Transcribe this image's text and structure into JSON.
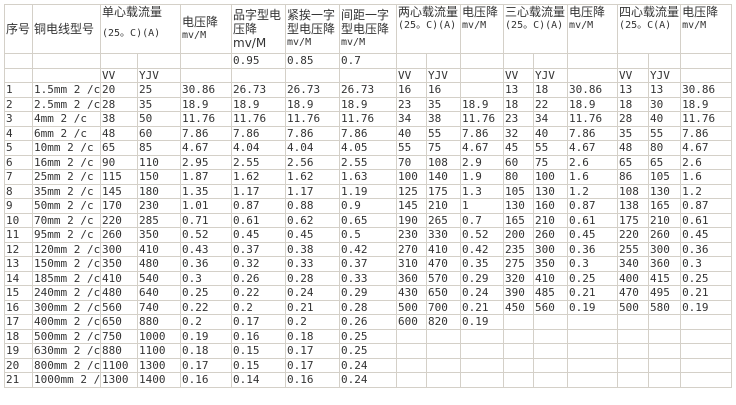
{
  "header": {
    "no": "序号",
    "model": "铜电线型号",
    "single_capacity": "单心载流量",
    "single_capacity_unit": "(25。C)(A)",
    "voltage_drop": "电压降",
    "voltage_drop_unit": "mv/M",
    "trefoil": "品字型电压降mv/M",
    "flat_touching": "紧挨一字型电压降",
    "flat_touching_unit": "mv/M",
    "flat_spaced": "间距一字型电压降",
    "flat_spaced_unit": "mv/M",
    "two_core": "两心载流量",
    "two_core_unit": "(25。C)(A)",
    "two_drop": "电压降",
    "two_drop_unit": "mv/M",
    "three_core": "三心载流量",
    "three_core_unit": "(25。C)(A)",
    "three_drop": "电压降",
    "three_drop_unit": "mv/M",
    "four_core": "四心载流量",
    "four_core_unit": "(25。C(A)",
    "four_drop": "电压降",
    "four_drop_unit": "mv/M"
  },
  "factors": [
    "",
    "",
    "",
    "",
    "",
    "0.95",
    "0.85",
    "0.7",
    "",
    "",
    "",
    "",
    "",
    "",
    "",
    "",
    ""
  ],
  "subheader": [
    "",
    "",
    "VV",
    "YJV",
    "",
    "",
    "",
    "",
    "VV",
    "YJV",
    "",
    "VV",
    "YJV",
    "",
    "VV",
    "YJV",
    ""
  ],
  "rows": [
    [
      "1",
      "1.5mm 2 /c",
      "20",
      "25",
      "30.86",
      "26.73",
      "26.73",
      "26.73",
      "16",
      "16",
      "",
      "13",
      "18",
      "30.86",
      "13",
      "13",
      "30.86"
    ],
    [
      "2",
      "2.5mm 2 /c",
      "28",
      "35",
      "18.9",
      "18.9",
      "18.9",
      "18.9",
      "23",
      "35",
      "18.9",
      "18",
      "22",
      "18.9",
      "18",
      "30",
      "18.9"
    ],
    [
      "3",
      "4mm 2 /c",
      "38",
      "50",
      "11.76",
      "11.76",
      "11.76",
      "11.76",
      "34",
      "38",
      "11.76",
      "23",
      "34",
      "11.76",
      "28",
      "40",
      "11.76"
    ],
    [
      "4",
      "6mm 2 /c",
      "48",
      "60",
      "7.86",
      "7.86",
      "7.86",
      "7.86",
      "40",
      "55",
      "7.86",
      "32",
      "40",
      "7.86",
      "35",
      "55",
      "7.86"
    ],
    [
      "5",
      "10mm 2 /c",
      "65",
      "85",
      "4.67",
      "4.04",
      "4.04",
      "4.05",
      "55",
      "75",
      "4.67",
      "45",
      "55",
      "4.67",
      "48",
      "80",
      "4.67"
    ],
    [
      "6",
      "16mm 2 /c",
      "90",
      "110",
      "2.95",
      "2.55",
      "2.56",
      "2.55",
      "70",
      "108",
      "2.9",
      "60",
      "75",
      "2.6",
      "65",
      "65",
      "2.6"
    ],
    [
      "7",
      "25mm 2 /c",
      "115",
      "150",
      "1.87",
      "1.62",
      "1.62",
      "1.63",
      "100",
      "140",
      "1.9",
      "80",
      "100",
      "1.6",
      "86",
      "105",
      "1.6"
    ],
    [
      "8",
      "35mm 2 /c",
      "145",
      "180",
      "1.35",
      "1.17",
      "1.17",
      "1.19",
      "125",
      "175",
      "1.3",
      "105",
      "130",
      "1.2",
      "108",
      "130",
      "1.2"
    ],
    [
      "9",
      "50mm 2 /c",
      "170",
      "230",
      "1.01",
      "0.87",
      "0.88",
      "0.9",
      "145",
      "210",
      "1",
      "130",
      "160",
      "0.87",
      "138",
      "165",
      "0.87"
    ],
    [
      "10",
      "70mm 2 /c",
      "220",
      "285",
      "0.71",
      "0.61",
      "0.62",
      "0.65",
      "190",
      "265",
      "0.7",
      "165",
      "210",
      "0.61",
      "175",
      "210",
      "0.61"
    ],
    [
      "11",
      "95mm 2 /c",
      "260",
      "350",
      "0.52",
      "0.45",
      "0.45",
      "0.5",
      "230",
      "330",
      "0.52",
      "200",
      "260",
      "0.45",
      "220",
      "260",
      "0.45"
    ],
    [
      "12",
      "120mm 2 /c",
      "300",
      "410",
      "0.43",
      "0.37",
      "0.38",
      "0.42",
      "270",
      "410",
      "0.42",
      "235",
      "300",
      "0.36",
      "255",
      "300",
      "0.36"
    ],
    [
      "13",
      "150mm 2 /c",
      "350",
      "480",
      "0.36",
      "0.32",
      "0.33",
      "0.37",
      "310",
      "470",
      "0.35",
      "275",
      "350",
      "0.3",
      "340",
      "360",
      "0.3"
    ],
    [
      "14",
      "185mm 2 /c",
      "410",
      "540",
      "0.3",
      "0.26",
      "0.28",
      "0.33",
      "360",
      "570",
      "0.29",
      "320",
      "410",
      "0.25",
      "400",
      "415",
      "0.25"
    ],
    [
      "15",
      "240mm 2 /c",
      "480",
      "640",
      "0.25",
      "0.22",
      "0.24",
      "0.29",
      "430",
      "650",
      "0.24",
      "390",
      "485",
      "0.21",
      "470",
      "495",
      "0.21"
    ],
    [
      "16",
      "300mm 2 /c",
      "560",
      "740",
      "0.22",
      "0.2",
      "0.21",
      "0.28",
      "500",
      "700",
      "0.21",
      "450",
      "560",
      "0.19",
      "500",
      "580",
      "0.19"
    ],
    [
      "17",
      "400mm 2 /c",
      "650",
      "880",
      "0.2",
      "0.17",
      "0.2",
      "0.26",
      "600",
      "820",
      "0.19",
      "",
      "",
      "",
      "",
      "",
      ""
    ],
    [
      "18",
      "500mm 2 /c",
      "750",
      "1000",
      "0.19",
      "0.16",
      "0.18",
      "0.25",
      "",
      "",
      "",
      "",
      "",
      "",
      "",
      "",
      ""
    ],
    [
      "19",
      "630mm 2 /c",
      "880",
      "1100",
      "0.18",
      "0.15",
      "0.17",
      "0.25",
      "",
      "",
      "",
      "",
      "",
      "",
      "",
      "",
      ""
    ],
    [
      "20",
      "800mm 2 /c",
      "1100",
      "1300",
      "0.17",
      "0.15",
      "0.17",
      "0.24",
      "",
      "",
      "",
      "",
      "",
      "",
      "",
      "",
      ""
    ],
    [
      "21",
      "1000mm 2 /c",
      "1300",
      "1400",
      "0.16",
      "0.14",
      "0.16",
      "0.24",
      "",
      "",
      "",
      "",
      "",
      "",
      "",
      "",
      ""
    ]
  ]
}
